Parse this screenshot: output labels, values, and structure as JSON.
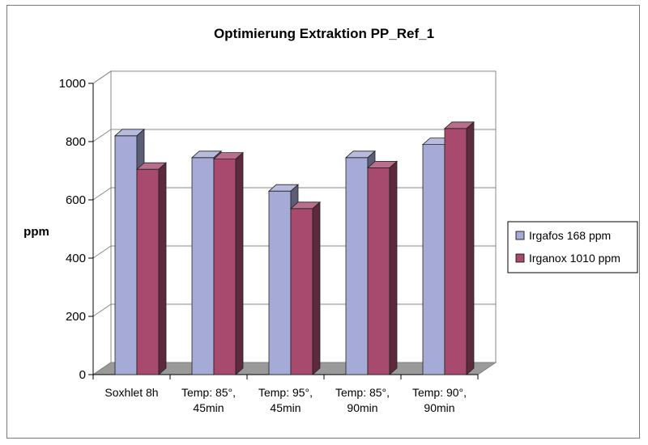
{
  "chart_data": {
    "type": "bar",
    "title": "Optimierung Extraktion PP_Ref_1",
    "xlabel": "",
    "ylabel": "ppm",
    "ylim": [
      0,
      1000
    ],
    "yticks": [
      0,
      200,
      400,
      600,
      800,
      1000
    ],
    "grid": true,
    "legend_position": "right",
    "categories": [
      [
        "Soxhlet 8h"
      ],
      [
        "Temp: 85°,",
        "45min"
      ],
      [
        "Temp: 95°,",
        "45min"
      ],
      [
        "Temp: 85°,",
        "90min"
      ],
      [
        "Temp: 90°,",
        "90min"
      ]
    ],
    "series": [
      {
        "name": "Irgafos 168 ppm",
        "color": "#a6aad6",
        "values": [
          820,
          745,
          630,
          745,
          790
        ]
      },
      {
        "name": "Irganox 1010 ppm",
        "color": "#a84a6e",
        "values": [
          705,
          740,
          570,
          710,
          845
        ]
      }
    ]
  }
}
